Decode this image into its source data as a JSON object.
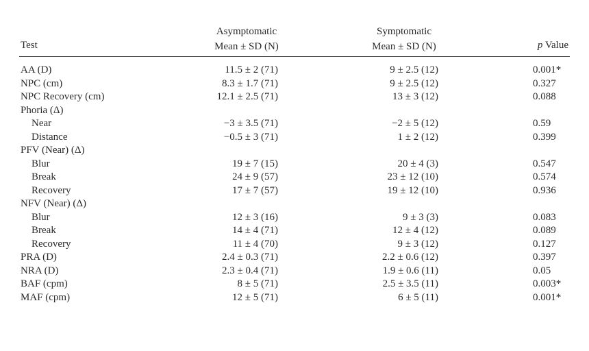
{
  "header": {
    "test": "Test",
    "asym_line1": "Asymptomatic",
    "asym_line2": "Mean ± SD (N)",
    "sym_line1": "Symptomatic",
    "sym_line2": "Mean ± SD (N)",
    "p_italic": "p",
    "p_rest": " Value"
  },
  "rows": [
    {
      "test": "AA (D)",
      "asym": "11.5 ± 2 (71)",
      "sym": "9 ± 2.5 (12)",
      "p": "0.001*",
      "sub": false
    },
    {
      "test": "NPC (cm)",
      "asym": "8.3 ± 1.7 (71)",
      "sym": "9 ± 2.5 (12)",
      "p": "0.327",
      "sub": false
    },
    {
      "test": "NPC Recovery (cm)",
      "asym": "12.1 ± 2.5 (71)",
      "sym": "13 ± 3 (12)",
      "p": "0.088",
      "sub": false
    },
    {
      "test": "Phoria (Δ)",
      "asym": "",
      "sym": "",
      "p": "",
      "sub": false
    },
    {
      "test": "Near",
      "asym": "−3 ± 3.5 (71)",
      "sym": "−2 ± 5 (12)",
      "p": "0.59",
      "sub": true
    },
    {
      "test": "Distance",
      "asym": "−0.5 ± 3 (71)",
      "sym": "1 ± 2 (12)",
      "p": "0.399",
      "sub": true
    },
    {
      "test": "PFV (Near) (Δ)",
      "asym": "",
      "sym": "",
      "p": "",
      "sub": false
    },
    {
      "test": "Blur",
      "asym": "19 ± 7 (15)",
      "sym": "20 ± 4 (3)",
      "p": "0.547",
      "sub": true
    },
    {
      "test": "Break",
      "asym": "24 ± 9 (57)",
      "sym": "23 ± 12 (10)",
      "p": "0.574",
      "sub": true
    },
    {
      "test": "Recovery",
      "asym": "17 ± 7 (57)",
      "sym": "19 ± 12 (10)",
      "p": "0.936",
      "sub": true
    },
    {
      "test": "NFV (Near) (Δ)",
      "asym": "",
      "sym": "",
      "p": "",
      "sub": false
    },
    {
      "test": "Blur",
      "asym": "12 ± 3 (16)",
      "sym": "9 ± 3 (3)",
      "p": "0.083",
      "sub": true
    },
    {
      "test": "Break",
      "asym": "14 ± 4 (71)",
      "sym": "12 ± 4 (12)",
      "p": "0.089",
      "sub": true
    },
    {
      "test": "Recovery",
      "asym": "11 ± 4 (70)",
      "sym": "9 ± 3 (12)",
      "p": "0.127",
      "sub": true
    },
    {
      "test": "PRA (D)",
      "asym": "2.4 ± 0.3 (71)",
      "sym": "2.2 ± 0.6 (12)",
      "p": "0.397",
      "sub": false
    },
    {
      "test": "NRA (D)",
      "asym": "2.3 ± 0.4 (71)",
      "sym": "1.9 ± 0.6 (11)",
      "p": "0.05",
      "sub": false
    },
    {
      "test": "BAF (cpm)",
      "asym": "8 ± 5 (71)",
      "sym": "2.5 ± 3.5 (11)",
      "p": "0.003*",
      "sub": false
    },
    {
      "test": "MAF (cpm)",
      "asym": "12 ± 5 (71)",
      "sym": "6 ± 5 (11)",
      "p": "0.001*",
      "sub": false
    }
  ]
}
